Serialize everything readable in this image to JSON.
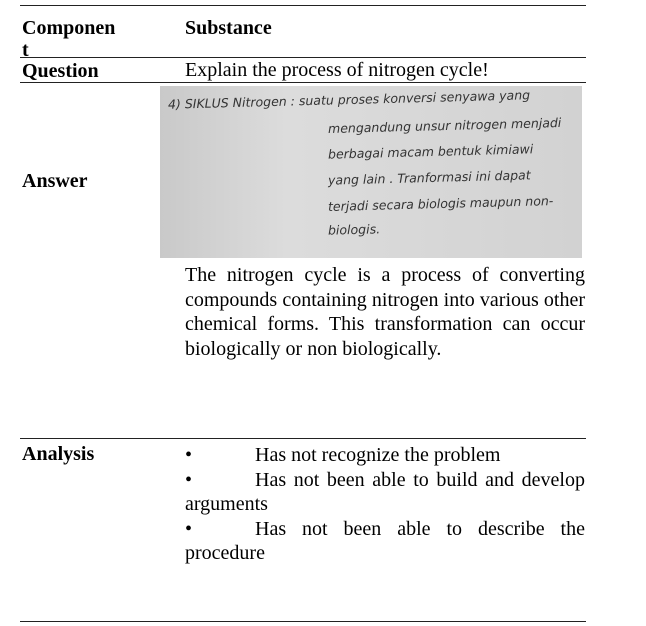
{
  "table": {
    "header": [
      "Component",
      "Substance"
    ],
    "rows": [
      {
        "label": "Question",
        "content": "Explain the process of nitrogen cycle!"
      },
      {
        "label": "Answer",
        "handwriting": [
          "4)  SIKLUS Nitrogen :  suatu proses konversi senyawa yang",
          "mengandung unsur nitrogen menjadi",
          "berbagai macam bentuk kimiawi",
          "yang lain . Tranformasi ini dapat",
          "terjadi secara biologis maupun non-",
          "biologis."
        ],
        "content": "The nitrogen cycle is a process of converting compounds containing nitrogen into various other chemical forms. This transformation can occur biologically or non biologically."
      },
      {
        "label": "Analysis",
        "bullets": [
          "Has not recognize the problem",
          "Has not been able to build and develop arguments",
          "Has not been able to describe the procedure"
        ]
      }
    ]
  }
}
